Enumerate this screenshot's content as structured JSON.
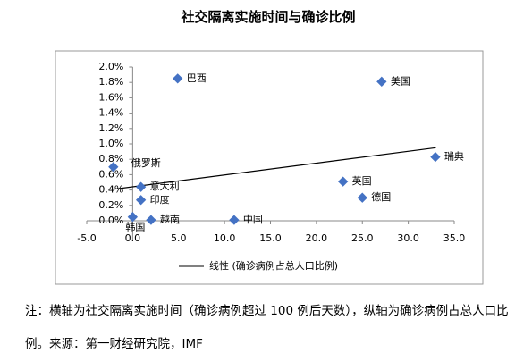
{
  "chart_data": {
    "type": "scatter",
    "title": "社交隔离实施时间与确诊比例",
    "labels": [
      "巴西",
      "美国",
      "瑞典",
      "英国",
      "德国",
      "中国",
      "越南",
      "韩国",
      "俄罗斯",
      "意大利",
      "印度"
    ],
    "x": [
      4.9,
      27.1,
      32.95,
      22.9,
      25.0,
      11.05,
      2.0,
      0.0,
      -2.1,
      0.9,
      0.9
    ],
    "values": [
      1.85,
      1.81,
      0.83,
      0.51,
      0.3,
      0.01,
      0.01,
      0.05,
      0.7,
      0.44,
      0.27
    ],
    "color": "#4472c4",
    "trendline": {
      "name": "线性 (确诊病例占总人口比例)",
      "x": [
        -2.1,
        33.0
      ],
      "values": [
        0.41,
        0.95
      ],
      "color": "#000000"
    },
    "xlim": [
      -5,
      35
    ],
    "xticks": [
      {
        "value": -5,
        "label": "-5.0"
      },
      {
        "value": 0,
        "label": "0.0"
      },
      {
        "value": 5,
        "label": "5.0"
      },
      {
        "value": 10,
        "label": "10.0"
      },
      {
        "value": 15,
        "label": "15.0"
      },
      {
        "value": 20,
        "label": "20.0"
      },
      {
        "value": 25,
        "label": "25.0"
      },
      {
        "value": 30,
        "label": "30.0"
      },
      {
        "value": 35,
        "label": "35.0"
      }
    ],
    "ylim": [
      0,
      2.0
    ],
    "yticks": [
      {
        "value": 0,
        "label": "0.0%"
      },
      {
        "value": 0.2,
        "label": "0.2%"
      },
      {
        "value": 0.4,
        "label": "0.4%"
      },
      {
        "value": 0.6,
        "label": "0.6%"
      },
      {
        "value": 0.8,
        "label": "0.8%"
      },
      {
        "value": 1.0,
        "label": "1.0%"
      },
      {
        "value": 1.2,
        "label": "1.2%"
      },
      {
        "value": 1.4,
        "label": "1.4%"
      },
      {
        "value": 1.6,
        "label": "1.6%"
      },
      {
        "value": 1.8,
        "label": "1.8%"
      },
      {
        "value": 2.0,
        "label": "2.0%"
      }
    ],
    "grid": false,
    "note": "注：横轴为社交隔离实施时间（确诊病例超过 100 例后天数），纵轴为确诊病例占总人口比例。来源：第一财经研究院，IMF"
  }
}
